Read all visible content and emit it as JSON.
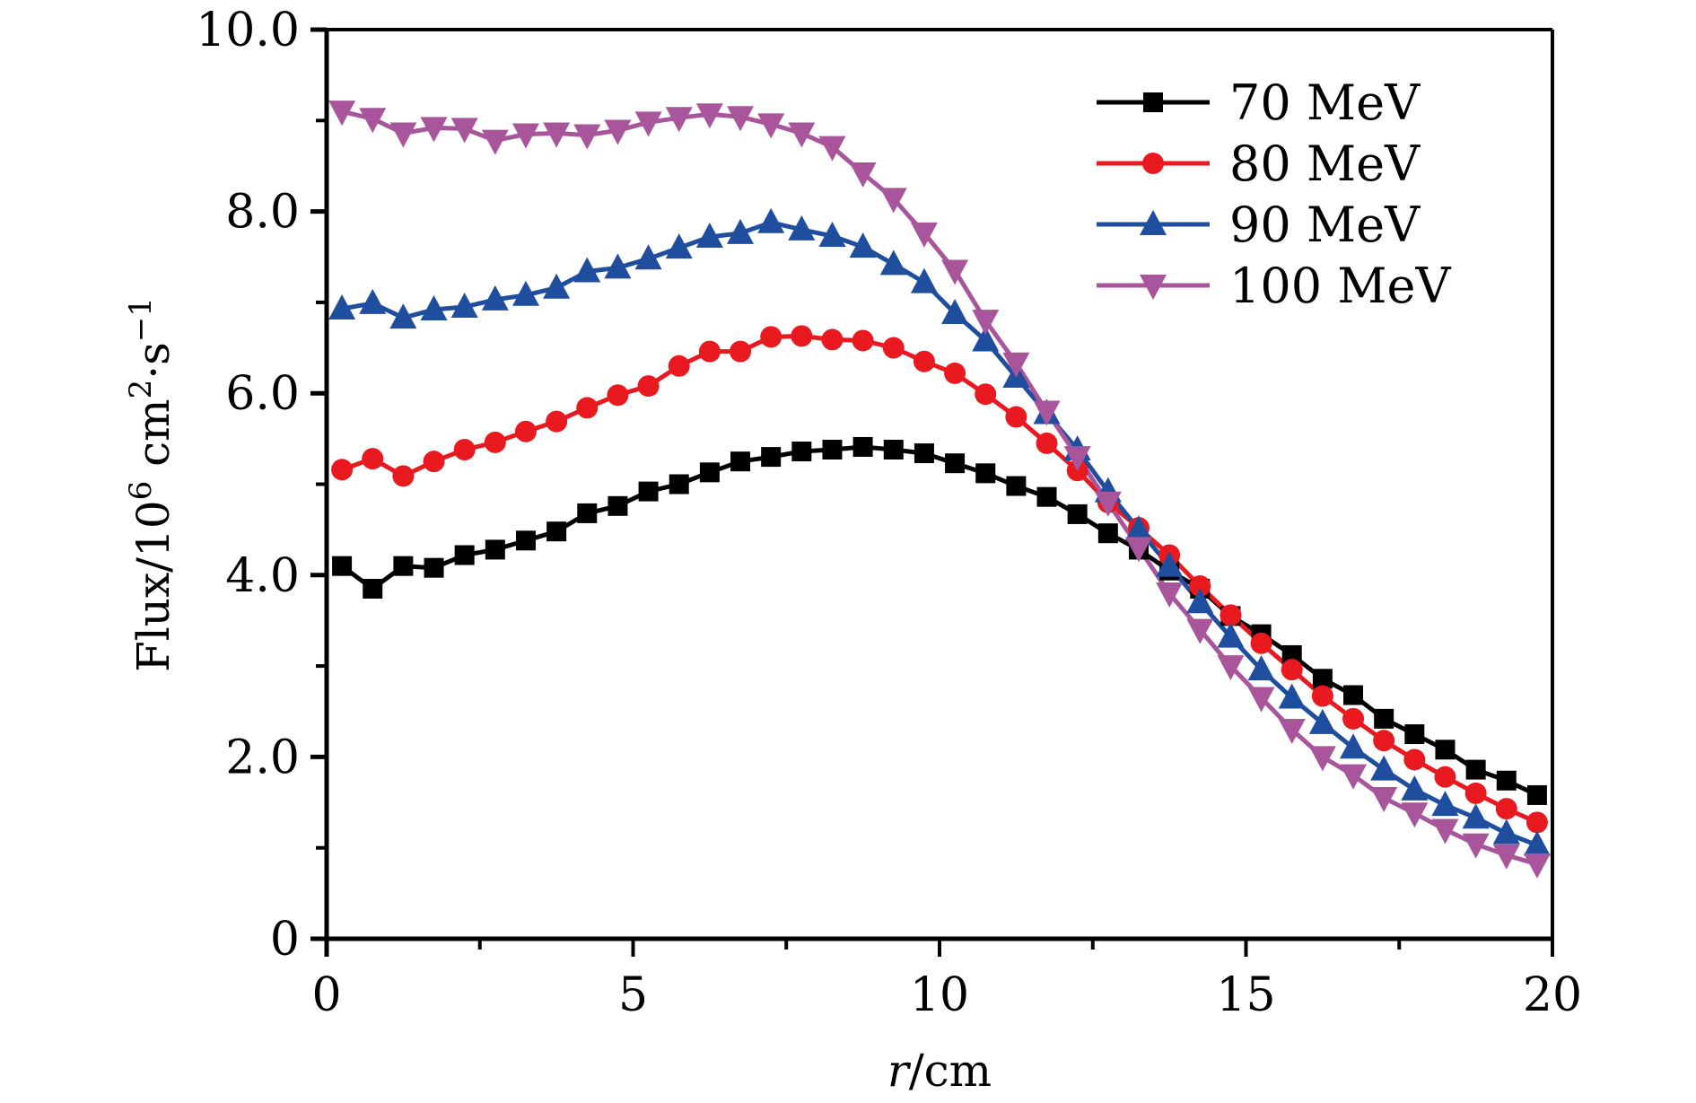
{
  "chart_data": {
    "type": "line",
    "title": "",
    "xlabel": "r/cm",
    "xlabel_italic_part": "r",
    "xlabel_rest": "/cm",
    "ylabel": "Flux/10^6 cm^2·s^-1",
    "ylabel_parts": {
      "prefix": "Flux/10",
      "exp1": "6",
      "mid": " cm",
      "exp2": "2",
      "mid2": "·s",
      "exp3": "−1"
    },
    "xlim": [
      0,
      20
    ],
    "ylim": [
      0,
      10
    ],
    "x_ticks": [
      0,
      5,
      10,
      15,
      20
    ],
    "x_tick_labels": [
      "0",
      "5",
      "10",
      "15",
      "20"
    ],
    "x_minor_ticks": [
      2.5,
      7.5,
      12.5,
      17.5
    ],
    "y_ticks": [
      0,
      2,
      4,
      6,
      8,
      10
    ],
    "y_tick_labels": [
      "0",
      "2.0",
      "4.0",
      "6.0",
      "8.0",
      "10.0"
    ],
    "y_minor_ticks": [
      1,
      3,
      5,
      7,
      9
    ],
    "grid": false,
    "legend_position": "top-right",
    "x": [
      0.25,
      0.75,
      1.25,
      1.75,
      2.25,
      2.75,
      3.25,
      3.75,
      4.25,
      4.75,
      5.25,
      5.75,
      6.25,
      6.75,
      7.25,
      7.75,
      8.25,
      8.75,
      9.25,
      9.75,
      10.25,
      10.75,
      11.25,
      11.75,
      12.25,
      12.75,
      13.25,
      13.75,
      14.25,
      14.75,
      15.25,
      15.75,
      16.25,
      16.75,
      17.25,
      17.75,
      18.25,
      18.75,
      19.25,
      19.75
    ],
    "series": [
      {
        "name": "70 MeV",
        "color": "#000000",
        "marker": "square",
        "values": [
          4.1,
          3.85,
          4.1,
          4.08,
          4.22,
          4.28,
          4.38,
          4.48,
          4.68,
          4.76,
          4.92,
          5.0,
          5.13,
          5.25,
          5.3,
          5.36,
          5.38,
          5.41,
          5.38,
          5.34,
          5.23,
          5.12,
          4.98,
          4.86,
          4.67,
          4.46,
          4.28,
          4.05,
          3.85,
          3.55,
          3.35,
          3.12,
          2.86,
          2.68,
          2.42,
          2.25,
          2.08,
          1.86,
          1.74,
          1.58
        ]
      },
      {
        "name": "80 MeV",
        "color": "#e8191f",
        "marker": "circle",
        "values": [
          5.16,
          5.28,
          5.09,
          5.25,
          5.38,
          5.46,
          5.58,
          5.69,
          5.84,
          5.98,
          6.08,
          6.3,
          6.46,
          6.46,
          6.62,
          6.63,
          6.59,
          6.58,
          6.5,
          6.35,
          6.22,
          5.99,
          5.74,
          5.45,
          5.15,
          4.8,
          4.52,
          4.22,
          3.88,
          3.56,
          3.25,
          2.96,
          2.67,
          2.42,
          2.18,
          1.97,
          1.78,
          1.6,
          1.43,
          1.28
        ]
      },
      {
        "name": "90 MeV",
        "color": "#1f4e9e",
        "marker": "triangle-up",
        "values": [
          6.93,
          6.99,
          6.83,
          6.92,
          6.95,
          7.03,
          7.08,
          7.16,
          7.34,
          7.38,
          7.48,
          7.6,
          7.72,
          7.76,
          7.88,
          7.8,
          7.73,
          7.61,
          7.42,
          7.22,
          6.88,
          6.58,
          6.18,
          5.78,
          5.38,
          4.92,
          4.5,
          4.1,
          3.7,
          3.32,
          2.96,
          2.65,
          2.37,
          2.1,
          1.86,
          1.64,
          1.47,
          1.33,
          1.16,
          1.03
        ]
      },
      {
        "name": "100 MeV",
        "color": "#a8559c",
        "marker": "triangle-down",
        "values": [
          9.1,
          9.02,
          8.86,
          8.92,
          8.91,
          8.78,
          8.85,
          8.86,
          8.84,
          8.89,
          8.98,
          9.03,
          9.07,
          9.04,
          8.96,
          8.86,
          8.71,
          8.42,
          8.14,
          7.76,
          7.35,
          6.8,
          6.33,
          5.8,
          5.3,
          4.8,
          4.3,
          3.8,
          3.4,
          3.0,
          2.65,
          2.3,
          2.0,
          1.8,
          1.55,
          1.38,
          1.2,
          1.04,
          0.92,
          0.82
        ]
      }
    ]
  }
}
